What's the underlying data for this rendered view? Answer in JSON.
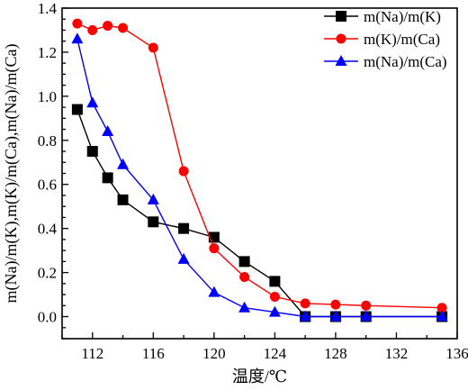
{
  "chart_data": {
    "type": "line",
    "xlabel": "温度/℃",
    "ylabel": "m(Na)/m(K),m(K)/m(Ca),m(Na)/m(Ca)",
    "xlim": [
      110,
      136
    ],
    "ylim": [
      -0.1,
      1.4
    ],
    "xticks": [
      112,
      116,
      120,
      124,
      128,
      132,
      136
    ],
    "yticks": [
      0.0,
      0.2,
      0.4,
      0.6,
      0.8,
      1.0,
      1.2,
      1.4
    ],
    "ytick_labels": [
      "0.0",
      "0.2",
      "0.4",
      "0.6",
      "0.8",
      "1.0",
      "1.2",
      "1.4"
    ],
    "grid": false,
    "legend_position": "top-right",
    "series": [
      {
        "name": "m(Na)/m(K)",
        "color": "#000000",
        "marker": "square",
        "x": [
          111,
          112,
          113,
          114,
          116,
          118,
          120,
          122,
          124,
          126,
          128,
          130,
          135
        ],
        "y": [
          0.94,
          0.75,
          0.63,
          0.53,
          0.43,
          0.4,
          0.36,
          0.25,
          0.16,
          0.0,
          0.0,
          0.0,
          0.0
        ]
      },
      {
        "name": "m(K)/m(Ca)",
        "color": "#ff0000",
        "marker": "circle",
        "x": [
          111,
          112,
          113,
          114,
          116,
          118,
          120,
          122,
          124,
          126,
          128,
          130,
          135
        ],
        "y": [
          1.33,
          1.3,
          1.32,
          1.31,
          1.22,
          0.66,
          0.31,
          0.18,
          0.09,
          0.06,
          0.055,
          0.05,
          0.04
        ]
      },
      {
        "name": "m(Na)/m(Ca)",
        "color": "#0000ff",
        "marker": "triangle",
        "x": [
          111,
          112,
          113,
          114,
          116,
          118,
          120,
          122,
          124,
          126,
          128,
          130,
          135
        ],
        "y": [
          1.26,
          0.97,
          0.84,
          0.69,
          0.53,
          0.26,
          0.11,
          0.04,
          0.02,
          0.0,
          0.0,
          0.0,
          0.0
        ]
      }
    ]
  }
}
